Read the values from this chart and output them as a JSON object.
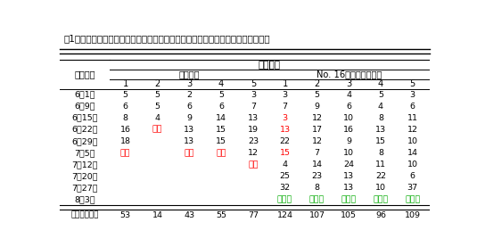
{
  "title": "表1　摘果時にウイルス汚染ハサミを使用した際のワクチン接種ピーマン防除効果",
  "col_header_top": "入鉢回数",
  "col_header_mid_left": "無接種株",
  "col_header_mid_right": "No. 16ワクチン接種株",
  "row_header_col": "摘果月日",
  "sub_cols": [
    "1",
    "2",
    "3",
    "4",
    "5",
    "1",
    "2",
    "3",
    "4",
    "5"
  ],
  "rows": [
    {
      "date": "6月1日",
      "vals": [
        "5",
        "5",
        "2",
        "5",
        "3",
        "3",
        "5",
        "4",
        "5",
        "3"
      ],
      "colors": [
        "k",
        "k",
        "k",
        "k",
        "k",
        "k",
        "k",
        "k",
        "k",
        "k"
      ]
    },
    {
      "date": "6月9日",
      "vals": [
        "6",
        "5",
        "6",
        "6",
        "7",
        "7",
        "9",
        "6",
        "4",
        "6"
      ],
      "colors": [
        "k",
        "k",
        "k",
        "k",
        "k",
        "k",
        "k",
        "k",
        "k",
        "k"
      ]
    },
    {
      "date": "6月15日",
      "vals": [
        "8",
        "4",
        "9",
        "14",
        "13",
        "3",
        "12",
        "10",
        "8",
        "11"
      ],
      "colors": [
        "k",
        "k",
        "k",
        "k",
        "k",
        "red",
        "k",
        "k",
        "k",
        "k"
      ]
    },
    {
      "date": "6月22日",
      "vals": [
        "16",
        "発病",
        "13",
        "15",
        "19",
        "13",
        "17",
        "16",
        "13",
        "12"
      ],
      "colors": [
        "k",
        "red",
        "k",
        "k",
        "k",
        "red",
        "k",
        "k",
        "k",
        "k"
      ]
    },
    {
      "date": "6月29日",
      "vals": [
        "18",
        "",
        "13",
        "15",
        "23",
        "22",
        "12",
        "9",
        "15",
        "10"
      ],
      "colors": [
        "k",
        "k",
        "k",
        "k",
        "k",
        "k",
        "k",
        "k",
        "k",
        "k"
      ]
    },
    {
      "date": "7月5日",
      "vals": [
        "発病",
        "",
        "発病",
        "発病",
        "12",
        "15",
        "7",
        "10",
        "8",
        "14"
      ],
      "colors": [
        "red",
        "k",
        "red",
        "red",
        "k",
        "red",
        "k",
        "k",
        "k",
        "k"
      ]
    },
    {
      "date": "7月12日",
      "vals": [
        "",
        "",
        "",
        "",
        "発病",
        "4",
        "14",
        "24",
        "11",
        "10"
      ],
      "colors": [
        "k",
        "k",
        "k",
        "k",
        "red",
        "k",
        "k",
        "k",
        "k",
        "k"
      ]
    },
    {
      "date": "7月20日",
      "vals": [
        "",
        "",
        "",
        "",
        "",
        "25",
        "23",
        "13",
        "22",
        "6"
      ],
      "colors": [
        "k",
        "k",
        "k",
        "k",
        "k",
        "k",
        "k",
        "k",
        "k",
        "k"
      ]
    },
    {
      "date": "7月27日",
      "vals": [
        "",
        "",
        "",
        "",
        "",
        "32",
        "8",
        "13",
        "10",
        "37"
      ],
      "colors": [
        "k",
        "k",
        "k",
        "k",
        "k",
        "k",
        "k",
        "k",
        "k",
        "k"
      ]
    },
    {
      "date": "8月3日",
      "vals": [
        "",
        "",
        "",
        "",
        "",
        "無発病",
        "無発病",
        "無発病",
        "無発病",
        "無発病"
      ],
      "colors": [
        "k",
        "k",
        "k",
        "k",
        "k",
        "green",
        "green",
        "green",
        "green",
        "green"
      ]
    }
  ],
  "footer_label": "合計入鉢回数",
  "footer_vals": [
    "53",
    "14",
    "43",
    "55",
    "77",
    "124",
    "107",
    "105",
    "96",
    "109"
  ],
  "bg_color": "#ffffff",
  "text_color": "#000000",
  "red_color": "#ff0000",
  "green_color": "#00aa00",
  "title_fontsize": 7.5,
  "cell_fontsize": 6.8
}
